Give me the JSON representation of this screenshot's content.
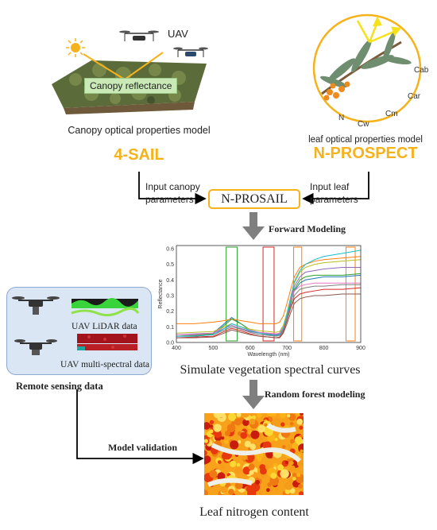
{
  "top_left": {
    "uav_label": "UAV",
    "canopy_reflectance_label": "Canopy reflectance",
    "model_caption": "Canopy optical properties model",
    "model_name": "4-SAIL"
  },
  "top_right": {
    "leaf_params": [
      "Cab",
      "Car",
      "Cm",
      "Cw",
      "N"
    ],
    "model_caption": "leaf optical properties model",
    "model_name": "N-PROSPECT"
  },
  "center": {
    "input_canopy_line1": "Input canopy",
    "input_canopy_line2": "parameters",
    "input_leaf_line1": "Input leaf",
    "input_leaf_line2": "parameters",
    "model_box": "N-PROSAIL",
    "forward_modeling": "Forward Modeling",
    "spectral_caption": "Simulate vegetation spectral curves",
    "random_forest": "Random forest modeling",
    "model_validation": "Model validation",
    "output_caption": "Leaf  nitrogen content"
  },
  "remote_sensing": {
    "lidar_label": "UAV LiDAR data",
    "multispectral_label": "UAV multi-spectral data",
    "caption": "Remote sensing data"
  },
  "colors": {
    "orange_accent": "#f5b21b",
    "arrow_grey": "#7f7f7f",
    "panel_fill": "#dae6f3",
    "panel_stroke": "#8ea9d4"
  },
  "chart_data": {
    "type": "line",
    "xlabel": "Wavelength (nm)",
    "ylabel": "Reflectance",
    "xlim": [
      400,
      900
    ],
    "ylim": [
      0.0,
      0.62
    ],
    "xticks": [
      400,
      500,
      600,
      700,
      800,
      900
    ],
    "yticks": [
      0.0,
      0.1,
      0.2,
      0.3,
      0.4,
      0.5,
      0.6
    ],
    "grid": false,
    "legend": "none",
    "x": [
      400,
      450,
      500,
      530,
      550,
      575,
      600,
      625,
      650,
      670,
      680,
      690,
      700,
      710,
      720,
      735,
      750,
      775,
      800,
      850,
      900
    ],
    "series": [
      {
        "color": "#1f77b4",
        "values": [
          0.04,
          0.045,
          0.06,
          0.12,
          0.16,
          0.12,
          0.08,
          0.06,
          0.05,
          0.05,
          0.06,
          0.1,
          0.18,
          0.26,
          0.33,
          0.38,
          0.4,
          0.41,
          0.42,
          0.42,
          0.43
        ]
      },
      {
        "color": "#ff7f0e",
        "values": [
          0.12,
          0.12,
          0.13,
          0.14,
          0.15,
          0.14,
          0.13,
          0.12,
          0.12,
          0.12,
          0.13,
          0.17,
          0.25,
          0.34,
          0.42,
          0.48,
          0.5,
          0.52,
          0.53,
          0.54,
          0.55
        ]
      },
      {
        "color": "#2ca02c",
        "values": [
          0.04,
          0.045,
          0.055,
          0.11,
          0.15,
          0.12,
          0.08,
          0.06,
          0.05,
          0.045,
          0.05,
          0.08,
          0.15,
          0.25,
          0.34,
          0.4,
          0.42,
          0.43,
          0.43,
          0.43,
          0.44
        ]
      },
      {
        "color": "#d62728",
        "values": [
          0.03,
          0.035,
          0.04,
          0.07,
          0.09,
          0.075,
          0.055,
          0.04,
          0.035,
          0.03,
          0.035,
          0.07,
          0.14,
          0.22,
          0.28,
          0.31,
          0.32,
          0.33,
          0.34,
          0.34,
          0.35
        ]
      },
      {
        "color": "#9467bd",
        "values": [
          0.05,
          0.055,
          0.06,
          0.09,
          0.11,
          0.09,
          0.07,
          0.06,
          0.055,
          0.05,
          0.055,
          0.09,
          0.17,
          0.27,
          0.36,
          0.42,
          0.45,
          0.46,
          0.47,
          0.48,
          0.48
        ]
      },
      {
        "color": "#8c564b",
        "values": [
          0.03,
          0.03,
          0.035,
          0.06,
          0.08,
          0.065,
          0.05,
          0.04,
          0.035,
          0.03,
          0.03,
          0.06,
          0.12,
          0.19,
          0.25,
          0.28,
          0.29,
          0.3,
          0.3,
          0.31,
          0.31
        ]
      },
      {
        "color": "#e377c2",
        "values": [
          0.05,
          0.05,
          0.06,
          0.1,
          0.12,
          0.1,
          0.08,
          0.065,
          0.06,
          0.055,
          0.06,
          0.1,
          0.18,
          0.27,
          0.33,
          0.36,
          0.37,
          0.38,
          0.38,
          0.38,
          0.38
        ]
      },
      {
        "color": "#7f7f7f",
        "values": [
          0.04,
          0.04,
          0.05,
          0.08,
          0.1,
          0.085,
          0.065,
          0.05,
          0.045,
          0.04,
          0.045,
          0.08,
          0.15,
          0.23,
          0.3,
          0.34,
          0.35,
          0.36,
          0.36,
          0.37,
          0.37
        ]
      },
      {
        "color": "#bcbd22",
        "values": [
          0.06,
          0.065,
          0.07,
          0.1,
          0.12,
          0.1,
          0.085,
          0.075,
          0.07,
          0.065,
          0.07,
          0.11,
          0.19,
          0.29,
          0.38,
          0.45,
          0.48,
          0.5,
          0.51,
          0.52,
          0.53
        ]
      },
      {
        "color": "#17becf",
        "values": [
          0.04,
          0.04,
          0.05,
          0.09,
          0.12,
          0.1,
          0.075,
          0.06,
          0.05,
          0.045,
          0.05,
          0.09,
          0.18,
          0.29,
          0.39,
          0.46,
          0.5,
          0.53,
          0.55,
          0.57,
          0.59
        ]
      }
    ],
    "highlight_bands": [
      {
        "from": 535,
        "to": 565,
        "color": "#2ca02c"
      },
      {
        "from": 635,
        "to": 665,
        "color": "#d62728"
      },
      {
        "from": 718,
        "to": 740,
        "color": "#ff7f0e"
      },
      {
        "from": 860,
        "to": 885,
        "color": "#ff7f0e"
      }
    ]
  }
}
